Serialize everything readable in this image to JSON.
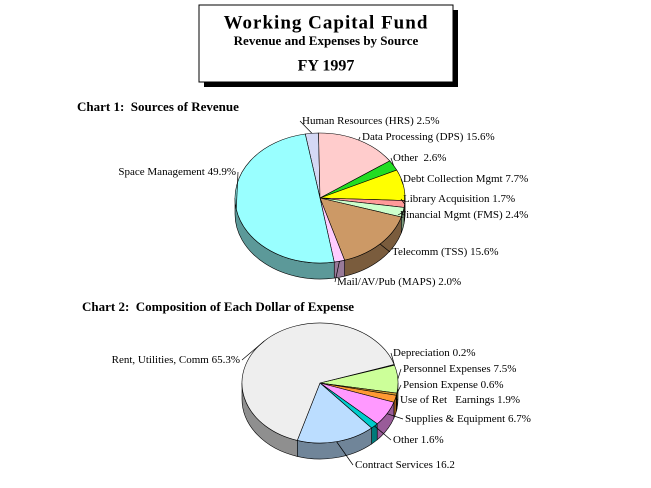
{
  "header": {
    "title": "Working Capital Fund",
    "subtitle": "Revenue and Expenses by Source",
    "year": "FY 1997"
  },
  "chart_data": [
    {
      "type": "pie",
      "title": "Chart 1:  Sources of Revenue",
      "categories": [
        "Human Resources (HRS)",
        "Data Processing (DPS)",
        "Other ",
        "Debt Collection Mgmt",
        "Library Acquisition",
        "Financial Mgmt (FMS)",
        "Telecomm (TSS)",
        "Mail/AV/Pub (MAPS)",
        "Space Management"
      ],
      "values": [
        2.5,
        15.6,
        2.6,
        7.7,
        1.7,
        2.4,
        15.6,
        2.0,
        49.9
      ],
      "value_labels": [
        "2.5%",
        "15.6%",
        "2.6%",
        "7.7%",
        "1.7%",
        "2.4%",
        "15.6%",
        "2.0%",
        "49.9%"
      ],
      "colors": [
        "#d4d8f4",
        "#ffcccc",
        "#22dd22",
        "#ffff00",
        "#ff9999",
        "#ccffcc",
        "#cc9966",
        "#ffccff",
        "#99ffff"
      ]
    },
    {
      "type": "pie",
      "title": "Chart 2:  Composition of Each Dollar of Expense",
      "categories": [
        "Depreciation",
        "Personnel Expenses",
        "Pension Expense",
        "Use of Ret   Earnings",
        "Supplies & Equipment",
        "Other",
        "Contract Services",
        "Rent, Utilities, Comm"
      ],
      "values": [
        0.2,
        7.5,
        0.6,
        1.9,
        6.7,
        1.6,
        16.2,
        65.3
      ],
      "value_labels": [
        "0.2%",
        "7.5%",
        "0.6%",
        "1.9%",
        "6.7%",
        "1.6%",
        "16.2",
        "65.3%"
      ],
      "colors": [
        "#333366",
        "#ccff99",
        "#cc9933",
        "#ff9933",
        "#ff99ff",
        "#00cccc",
        "#bbddff",
        "#eeeeee"
      ]
    }
  ]
}
